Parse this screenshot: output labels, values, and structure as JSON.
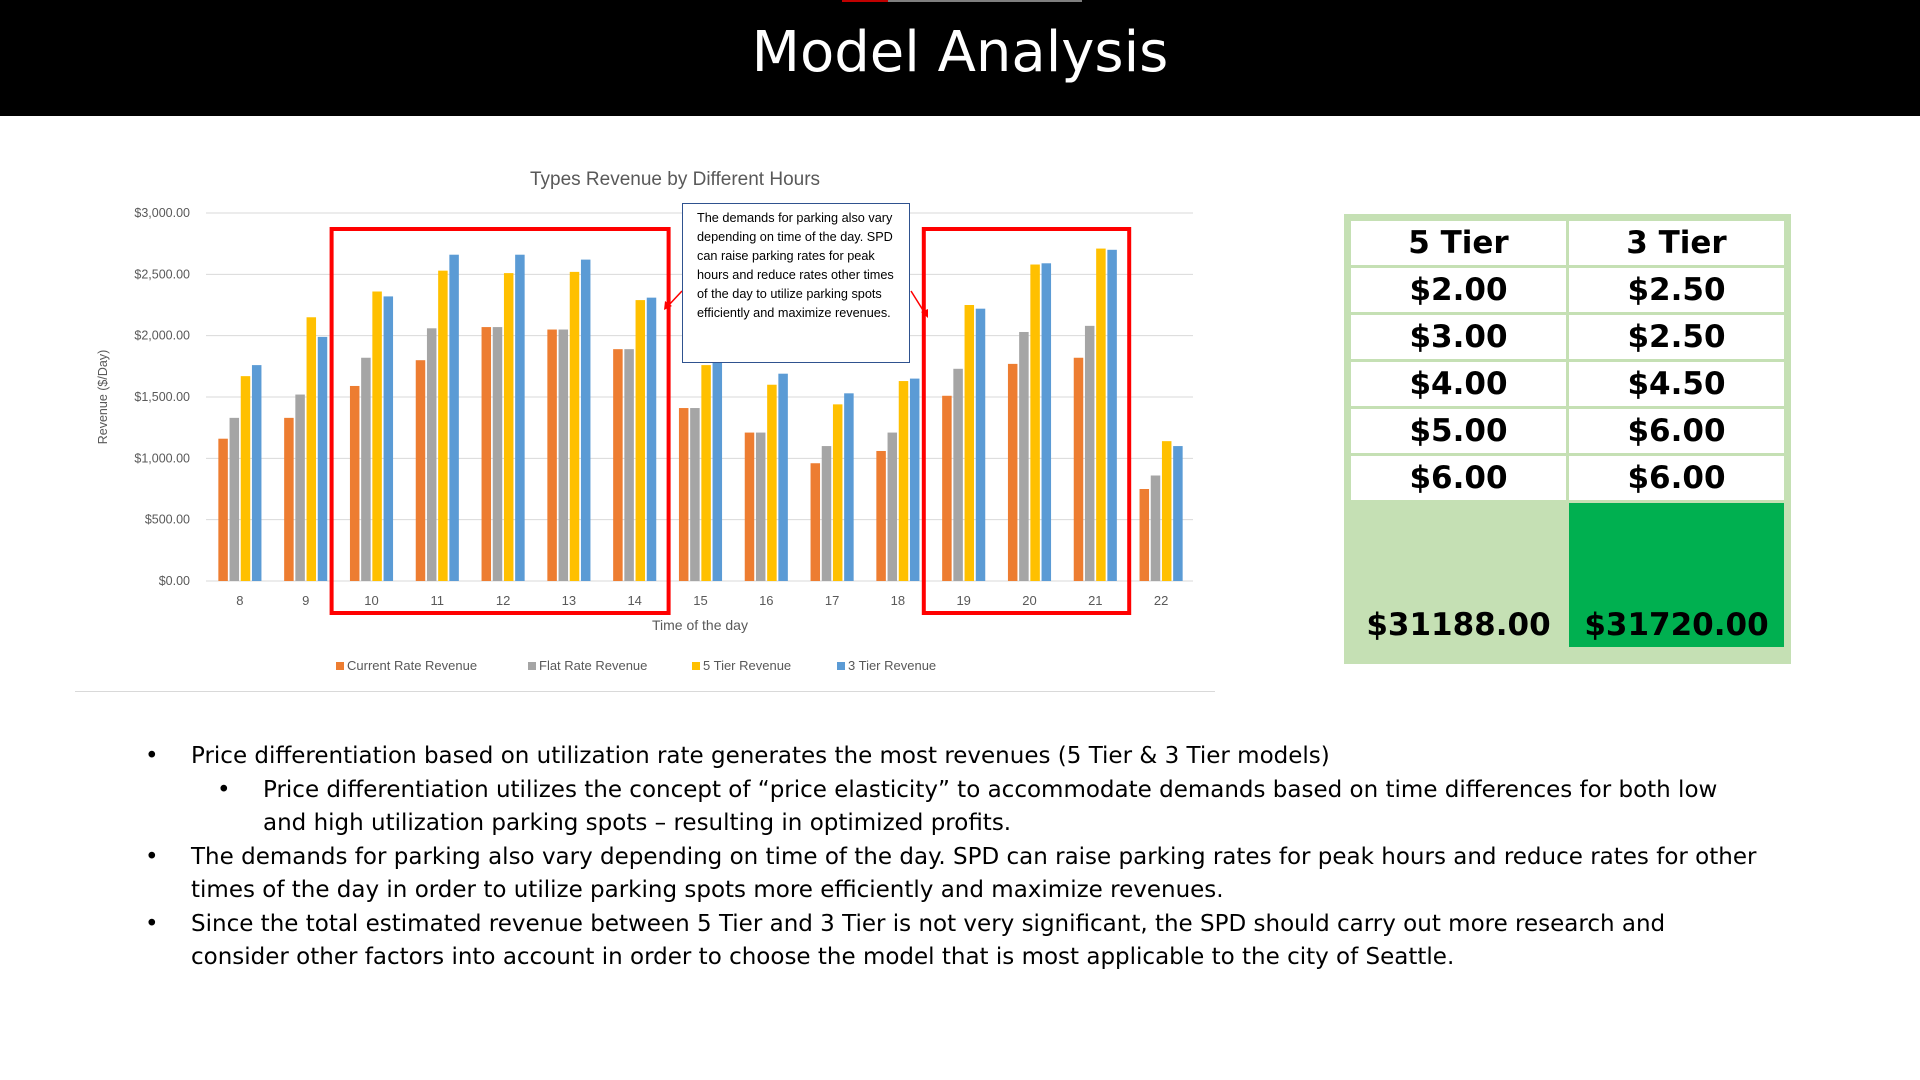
{
  "slide": {
    "title": "Model Analysis"
  },
  "chart_data": {
    "type": "bar",
    "title": "Types Revenue  by Different Hours",
    "xlabel": "Time of the day",
    "ylabel": "Revenue ($/Day)",
    "ylim": [
      0,
      3000
    ],
    "yticks": [
      "$0.00",
      "$500.00",
      "$1,000.00",
      "$1,500.00",
      "$2,000.00",
      "$2,500.00",
      "$3,000.00"
    ],
    "categories": [
      "8",
      "9",
      "10",
      "11",
      "12",
      "13",
      "14",
      "15",
      "16",
      "17",
      "18",
      "19",
      "20",
      "21",
      "22"
    ],
    "series": [
      {
        "name": "Current Rate Revenue",
        "color": "#ed7d31",
        "values": [
          1160,
          1330,
          1590,
          1800,
          2070,
          2050,
          1890,
          1410,
          1210,
          960,
          1060,
          1510,
          1770,
          1820,
          750
        ]
      },
      {
        "name": "Flat Rate Revenue",
        "color": "#a5a5a5",
        "values": [
          1330,
          1520,
          1820,
          2060,
          2070,
          2050,
          1890,
          1410,
          1210,
          1100,
          1210,
          1730,
          2030,
          2080,
          860
        ]
      },
      {
        "name": "5 Tier Revenue",
        "color": "#ffc000",
        "values": [
          1670,
          2150,
          2360,
          2530,
          2510,
          2520,
          2290,
          1760,
          1600,
          1440,
          1630,
          2250,
          2580,
          2710,
          1140
        ]
      },
      {
        "name": "3 Tier Revenue",
        "color": "#5b9bd5",
        "values": [
          1760,
          1990,
          2320,
          2660,
          2660,
          2620,
          2310,
          1800,
          1690,
          1530,
          1650,
          2220,
          2590,
          2700,
          1100
        ]
      }
    ],
    "grid": true,
    "legend": "bottom",
    "highlight_color": "#ff0000",
    "highlight_groups": [
      [
        "10",
        "14"
      ],
      [
        "19",
        "21"
      ]
    ],
    "annotation": "The demands for parking also vary depending on time of the day. SPD can raise parking rates for peak hours and reduce rates other times of the day to utilize parking spots efficiently and maximize revenues."
  },
  "tier_table": {
    "headers": [
      "5 Tier",
      "3 Tier"
    ],
    "rows": [
      [
        "$2.00",
        "$2.50"
      ],
      [
        "$3.00",
        "$2.50"
      ],
      [
        "$4.00",
        "$4.50"
      ],
      [
        "$5.00",
        "$6.00"
      ],
      [
        "$6.00",
        "$6.00"
      ]
    ],
    "totals": [
      "$31188.00",
      "$31720.00"
    ],
    "colors": {
      "border": "#c5e0b4",
      "highlight": "#00b050"
    }
  },
  "bullets": [
    "Price differentiation based on utilization rate generates the most revenues (5 Tier & 3 Tier models)",
    "Price differentiation utilizes the concept of “price elasticity” to accommodate demands based on time differences for both low and high utilization parking spots – resulting in optimized profits.",
    "The demands for parking also vary depending on time of the day. SPD can raise parking rates for peak hours and reduce rates for other times of the day in order to utilize parking spots more efficiently and maximize revenues.",
    "Since the total estimated revenue between 5 Tier and 3 Tier is not very significant, the SPD should carry out more research and consider other factors into account in order to choose the model that is most applicable to the city of Seattle."
  ],
  "bullet_glyph": "•"
}
